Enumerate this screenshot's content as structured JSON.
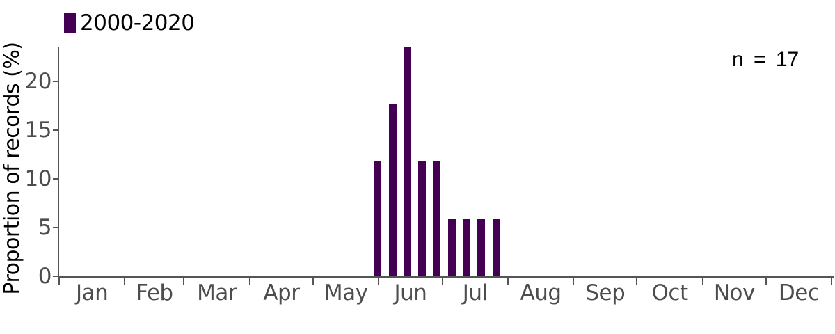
{
  "chart_data": {
    "type": "bar",
    "title": "",
    "xlabel": "",
    "ylabel": "Proportion of records (%)",
    "legend": [
      {
        "label": "2000-2020",
        "color": "#440154"
      }
    ],
    "legend_position": "top-left",
    "annotation": "n = 17",
    "n": 17,
    "grid": false,
    "y_ticks": [
      0,
      5,
      10,
      15,
      20
    ],
    "ylim": [
      0,
      23.6
    ],
    "x_unit": "day_of_year",
    "xlim": [
      0,
      365
    ],
    "month_labels": [
      "Jan",
      "Feb",
      "Mar",
      "Apr",
      "May",
      "Jun",
      "Jul",
      "Aug",
      "Sep",
      "Oct",
      "Nov",
      "Dec"
    ],
    "month_start_days": [
      0,
      31,
      59,
      90,
      120,
      151,
      181,
      212,
      243,
      273,
      304,
      334,
      365
    ],
    "bin_width_days": 7,
    "bin_center_days": [
      150.5,
      157.5,
      164.5,
      171.5,
      178.5,
      185.5,
      192.5,
      199.5,
      206.5
    ],
    "values": [
      11.76,
      17.65,
      23.53,
      11.76,
      11.76,
      5.88,
      5.88,
      5.88,
      5.88
    ],
    "counts": [
      2,
      3,
      4,
      2,
      2,
      1,
      1,
      1,
      1
    ]
  },
  "colors": {
    "bar": "#440154",
    "axis": "#555555",
    "tick_label": "#4d4d4d",
    "text": "#000000",
    "background": "#ffffff"
  }
}
